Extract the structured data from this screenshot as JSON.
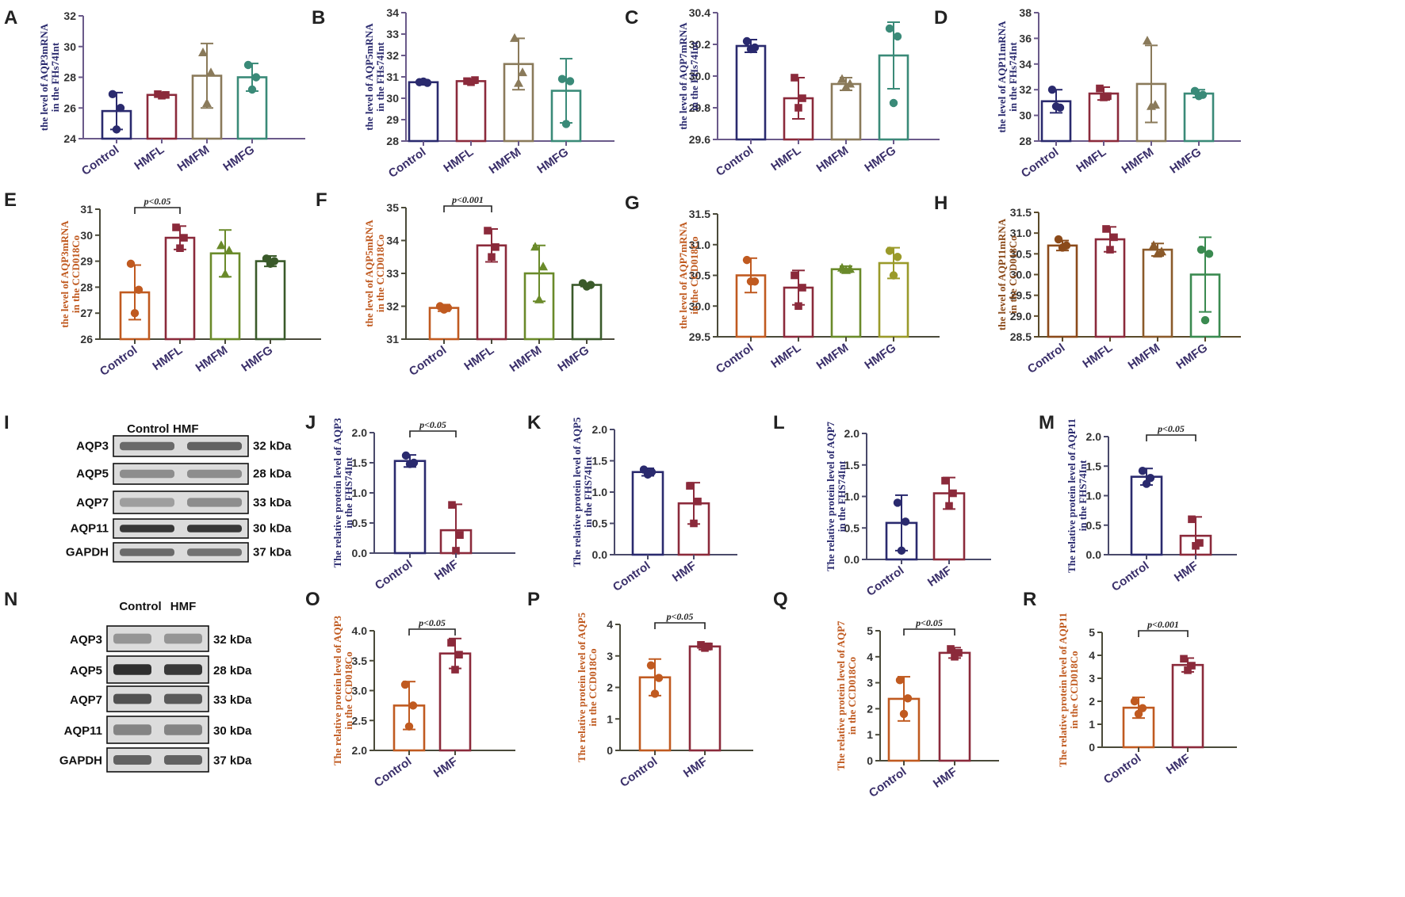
{
  "figure": {
    "title": ""
  },
  "chart_data": [
    {
      "panel": "A",
      "type": "bar",
      "ylabel": [
        "the level of AQP3mRNA",
        "in the FHs74Int"
      ],
      "ylim": [
        24,
        32
      ],
      "yticks": [
        24,
        26,
        28,
        30,
        32
      ],
      "categories": [
        "Control",
        "HMFL",
        "HMFM",
        "HMFG"
      ],
      "values": [
        25.8,
        26.85,
        28.1,
        28.0
      ],
      "err": [
        1.2,
        0.1,
        2.1,
        0.9
      ],
      "points": [
        [
          26.9,
          26.0,
          24.6
        ],
        [
          26.9,
          26.85,
          26.8
        ],
        [
          29.6,
          28.3,
          26.3
        ],
        [
          28.8,
          28.0,
          27.2
        ]
      ],
      "markers": [
        "circle",
        "square",
        "triangle",
        "circle"
      ],
      "colors": [
        "#2a2a6e",
        "#8b2a3b",
        "#8a7a5a",
        "#3a8a78"
      ],
      "axisColor": "#6a5a8a"
    },
    {
      "panel": "B",
      "type": "bar",
      "ylabel": [
        "the level of AQP5mRNA",
        "in the FHs74Int"
      ],
      "ylim": [
        28,
        34
      ],
      "yticks": [
        28,
        29,
        30,
        31,
        32,
        33,
        34
      ],
      "categories": [
        "Control",
        "HMFL",
        "HMFM",
        "HMFG"
      ],
      "values": [
        30.75,
        30.8,
        31.6,
        30.35
      ],
      "err": [
        0.05,
        0.1,
        1.2,
        1.5
      ],
      "points": [
        [
          30.75,
          30.72,
          30.78
        ],
        [
          30.8,
          30.85,
          30.75
        ],
        [
          32.8,
          31.2,
          30.7
        ],
        [
          30.9,
          30.8,
          28.8
        ]
      ],
      "markers": [
        "circle",
        "square",
        "triangle",
        "circle"
      ],
      "colors": [
        "#2a2a6e",
        "#8b2a3b",
        "#8a7a5a",
        "#3a8a78"
      ],
      "axisColor": "#6a5a8a"
    },
    {
      "panel": "C",
      "type": "bar",
      "ylabel": [
        "the level of AQP7mRNA",
        "in the FHs74Int"
      ],
      "ylim": [
        29.6,
        30.4
      ],
      "yticks": [
        "29.6",
        "29.8",
        "30.0",
        "30.2",
        "30.4"
      ],
      "categories": [
        "Control",
        "HMFL",
        "HMFM",
        "HMFG"
      ],
      "values": [
        30.19,
        29.86,
        29.95,
        30.13
      ],
      "err": [
        0.04,
        0.13,
        0.04,
        0.21
      ],
      "points": [
        [
          30.22,
          30.18,
          30.17
        ],
        [
          29.99,
          29.86,
          29.8
        ],
        [
          29.98,
          29.95,
          29.93
        ],
        [
          30.3,
          30.25,
          29.83
        ]
      ],
      "markers": [
        "circle",
        "square",
        "triangle",
        "circle"
      ],
      "colors": [
        "#2a2a6e",
        "#8b2a3b",
        "#8a7a5a",
        "#3a8a78"
      ],
      "axisColor": "#6a5a8a"
    },
    {
      "panel": "D",
      "type": "bar",
      "ylabel": [
        "the level of AQP11mRNA",
        "in the FHs74Int"
      ],
      "ylim": [
        28,
        38
      ],
      "yticks": [
        28,
        30,
        32,
        34,
        36,
        38
      ],
      "categories": [
        "Control",
        "HMFL",
        "HMFM",
        "HMFG"
      ],
      "values": [
        31.1,
        31.7,
        32.45,
        31.7
      ],
      "err": [
        0.9,
        0.5,
        3.0,
        0.3
      ],
      "points": [
        [
          32.0,
          30.6,
          30.7
        ],
        [
          32.1,
          31.5,
          31.4
        ],
        [
          35.8,
          30.8,
          30.7
        ],
        [
          31.9,
          31.6,
          31.5
        ]
      ],
      "markers": [
        "circle",
        "square",
        "triangle",
        "circle"
      ],
      "colors": [
        "#2a2a6e",
        "#8b2a3b",
        "#8a7a5a",
        "#3a8a78"
      ],
      "axisColor": "#6a5a8a"
    },
    {
      "panel": "E",
      "type": "bar",
      "ylabel": [
        "the level of AQP3mRNA",
        "in the CCD018Co"
      ],
      "ylim": [
        26,
        31
      ],
      "yticks": [
        26,
        27,
        28,
        29,
        30,
        31
      ],
      "categories": [
        "Control",
        "HMFL",
        "HMFM",
        "HMFG"
      ],
      "values": [
        27.8,
        29.9,
        29.3,
        29.0
      ],
      "err": [
        1.05,
        0.45,
        0.9,
        0.2
      ],
      "points": [
        [
          28.9,
          27.9,
          27.0
        ],
        [
          30.3,
          29.9,
          29.5
        ],
        [
          29.6,
          29.4,
          28.5
        ],
        [
          29.1,
          29.0,
          28.9
        ]
      ],
      "markers": [
        "circle",
        "square",
        "triangle",
        "circle"
      ],
      "colors": [
        "#c05a20",
        "#8b2a3b",
        "#6a8a2a",
        "#3a5a2a"
      ],
      "axisColor": "#4a4a3a",
      "sig": {
        "from": 0,
        "to": 1,
        "text": "p<0.05"
      }
    },
    {
      "panel": "F",
      "type": "bar",
      "ylabel": [
        "the level of AQP5mRNA",
        "in the CCD018Co"
      ],
      "ylim": [
        31,
        35
      ],
      "yticks": [
        31,
        32,
        33,
        34,
        35
      ],
      "categories": [
        "Control",
        "HMFL",
        "HMFM",
        "HMFG"
      ],
      "values": [
        31.95,
        33.85,
        33.0,
        32.65
      ],
      "err": [
        0.1,
        0.5,
        0.85,
        0.05
      ],
      "points": [
        [
          32.0,
          31.95,
          31.9
        ],
        [
          34.3,
          33.8,
          33.5
        ],
        [
          33.8,
          33.2,
          32.2
        ],
        [
          32.7,
          32.65,
          32.6
        ]
      ],
      "markers": [
        "circle",
        "square",
        "triangle",
        "circle"
      ],
      "colors": [
        "#c05a20",
        "#8b2a3b",
        "#6a8a2a",
        "#3a5a2a"
      ],
      "axisColor": "#4a4a3a",
      "sig": {
        "from": 0,
        "to": 1,
        "text": "p<0.001"
      }
    },
    {
      "panel": "G",
      "type": "bar",
      "ylabel": [
        "the level of AQP7mRNA",
        "in the CCD018Co"
      ],
      "ylim": [
        29.5,
        31.5
      ],
      "yticks": [
        "29.5",
        "30.0",
        "30.5",
        "31.0",
        "31.5"
      ],
      "categories": [
        "Control",
        "HMFL",
        "HMFM",
        "HMFG"
      ],
      "values": [
        30.5,
        30.3,
        30.6,
        30.7
      ],
      "err": [
        0.28,
        0.28,
        0.05,
        0.25
      ],
      "points": [
        [
          30.75,
          30.4,
          30.4
        ],
        [
          30.5,
          30.3,
          30.0
        ],
        [
          30.62,
          30.6,
          30.58
        ],
        [
          30.9,
          30.8,
          30.5
        ]
      ],
      "markers": [
        "circle",
        "square",
        "triangle",
        "circle"
      ],
      "colors": [
        "#c05a20",
        "#8b2a3b",
        "#6a8a2a",
        "#9a9a2a"
      ],
      "axisColor": "#4a4a3a"
    },
    {
      "panel": "H",
      "type": "bar",
      "ylabel": [
        "the level of AQP11mRNA",
        "in the CCD018Co"
      ],
      "ylim": [
        28.5,
        31.5
      ],
      "yticks": [
        "28.5",
        "29.0",
        "29.5",
        "30.0",
        "30.5",
        "31.0",
        "31.5"
      ],
      "categories": [
        "Control",
        "HMFL",
        "HMFM",
        "HMFG"
      ],
      "values": [
        30.7,
        30.85,
        30.6,
        30.0
      ],
      "err": [
        0.12,
        0.3,
        0.15,
        0.9
      ],
      "points": [
        [
          30.85,
          30.7,
          30.65
        ],
        [
          31.1,
          30.9,
          30.6
        ],
        [
          30.7,
          30.55,
          30.5
        ],
        [
          30.6,
          30.5,
          28.9
        ]
      ],
      "markers": [
        "circle",
        "square",
        "triangle",
        "circle"
      ],
      "colors": [
        "#8b4a1a",
        "#8b2a3b",
        "#8b5a2a",
        "#3a8a50"
      ],
      "axisColor": "#5a4a2a"
    },
    {
      "panel": "J",
      "type": "bar",
      "ylabel": [
        "The relative protein level of AQP3",
        "in the FHS74Int"
      ],
      "ylim": [
        0,
        2
      ],
      "yticks": [
        "0.0",
        "0.5",
        "1.0",
        "1.5",
        "2.0"
      ],
      "categories": [
        "Control",
        "HMF"
      ],
      "values": [
        1.53,
        0.38
      ],
      "err": [
        0.1,
        0.43
      ],
      "points": [
        [
          1.62,
          1.5,
          1.48
        ],
        [
          0.8,
          0.3,
          0.04
        ]
      ],
      "markers": [
        "circle",
        "square"
      ],
      "colors": [
        "#2a2a6e",
        "#8b2a3b"
      ],
      "axisColor": "#4a4a6a",
      "sig": {
        "from": 0,
        "to": 1,
        "text": "p<0.05"
      }
    },
    {
      "panel": "K",
      "type": "bar",
      "ylabel": [
        "The relative protein level of AQP5",
        "in the FHS74Int"
      ],
      "ylim": [
        0,
        2
      ],
      "yticks": [
        "0.0",
        "0.5",
        "1.0",
        "1.5",
        "2.0"
      ],
      "categories": [
        "Control",
        "HMF"
      ],
      "values": [
        1.32,
        0.82
      ],
      "err": [
        0.06,
        0.33
      ],
      "points": [
        [
          1.36,
          1.32,
          1.28
        ],
        [
          1.1,
          0.85,
          0.5
        ]
      ],
      "markers": [
        "circle",
        "square"
      ],
      "colors": [
        "#2a2a6e",
        "#8b2a3b"
      ],
      "axisColor": "#4a4a6a"
    },
    {
      "panel": "L",
      "type": "bar",
      "ylabel": [
        "The relative protein level of AQP7",
        "in the FHS74Int"
      ],
      "ylim": [
        0,
        2
      ],
      "yticks": [
        "0.0",
        "0.5",
        "1.0",
        "1.5",
        "2.0"
      ],
      "categories": [
        "Control",
        "HMF"
      ],
      "values": [
        0.58,
        1.05
      ],
      "err": [
        0.44,
        0.25
      ],
      "points": [
        [
          0.9,
          0.6,
          0.14
        ],
        [
          1.25,
          1.05,
          0.85
        ]
      ],
      "markers": [
        "circle",
        "square"
      ],
      "colors": [
        "#2a2a6e",
        "#8b2a3b"
      ],
      "axisColor": "#4a4a6a"
    },
    {
      "panel": "M",
      "type": "bar",
      "ylabel": [
        "The relative protein level of AQP11",
        "in the FHS74Int"
      ],
      "ylim": [
        0,
        2
      ],
      "yticks": [
        "0.0",
        "0.5",
        "1.0",
        "1.5",
        "2.0"
      ],
      "categories": [
        "Control",
        "HMF"
      ],
      "values": [
        1.32,
        0.32
      ],
      "err": [
        0.14,
        0.32
      ],
      "points": [
        [
          1.42,
          1.3,
          1.2
        ],
        [
          0.6,
          0.2,
          0.15
        ]
      ],
      "markers": [
        "circle",
        "square"
      ],
      "colors": [
        "#2a2a6e",
        "#8b2a3b"
      ],
      "axisColor": "#4a4a6a",
      "sig": {
        "from": 0,
        "to": 1,
        "text": "p<0.05"
      }
    },
    {
      "panel": "O",
      "type": "bar",
      "ylabel": [
        "The relative protein level of AQP3",
        "in the CCD018Co"
      ],
      "ylim": [
        2,
        4
      ],
      "yticks": [
        "2.0",
        "2.5",
        "3.0",
        "3.5",
        "4.0"
      ],
      "categories": [
        "Control",
        "HMF"
      ],
      "values": [
        2.75,
        3.62
      ],
      "err": [
        0.4,
        0.25
      ],
      "points": [
        [
          3.1,
          2.75,
          2.4
        ],
        [
          3.8,
          3.6,
          3.35
        ]
      ],
      "markers": [
        "circle",
        "square"
      ],
      "colors": [
        "#c05a20",
        "#8b2a3b"
      ],
      "axisColor": "#4a4a3a",
      "sig": {
        "from": 0,
        "to": 1,
        "text": "p<0.05"
      }
    },
    {
      "panel": "P",
      "type": "bar",
      "ylabel": [
        "The relative protein level of AQP5",
        "in the CCD018Co"
      ],
      "ylim": [
        0,
        4
      ],
      "yticks": [
        0,
        1,
        2,
        3,
        4
      ],
      "categories": [
        "Control",
        "HMF"
      ],
      "values": [
        2.32,
        3.3
      ],
      "err": [
        0.58,
        0.1
      ],
      "points": [
        [
          2.7,
          2.3,
          1.8
        ],
        [
          3.35,
          3.3,
          3.25
        ]
      ],
      "markers": [
        "circle",
        "square"
      ],
      "colors": [
        "#c05a20",
        "#8b2a3b"
      ],
      "axisColor": "#4a4a3a",
      "sig": {
        "from": 0,
        "to": 1,
        "text": "p<0.05"
      }
    },
    {
      "panel": "Q",
      "type": "bar",
      "ylabel": [
        "The relative protein level of AQP7",
        "in the CCD018Co"
      ],
      "ylim": [
        0,
        5
      ],
      "yticks": [
        0,
        1,
        2,
        3,
        4,
        5
      ],
      "categories": [
        "Control",
        "HMF"
      ],
      "values": [
        2.38,
        4.15
      ],
      "err": [
        0.85,
        0.2
      ],
      "points": [
        [
          3.1,
          2.4,
          1.8
        ],
        [
          4.3,
          4.15,
          4.0
        ]
      ],
      "markers": [
        "circle",
        "square"
      ],
      "colors": [
        "#c05a20",
        "#8b2a3b"
      ],
      "axisColor": "#4a4a3a",
      "sig": {
        "from": 0,
        "to": 1,
        "text": "p<0.05"
      }
    },
    {
      "panel": "R",
      "type": "bar",
      "ylabel": [
        "The relative protein level of AQP11",
        "in the CCD018Co"
      ],
      "ylim": [
        0,
        5
      ],
      "yticks": [
        0,
        1,
        2,
        3,
        4,
        5
      ],
      "categories": [
        "Control",
        "HMF"
      ],
      "values": [
        1.72,
        3.58
      ],
      "err": [
        0.45,
        0.3
      ],
      "points": [
        [
          2.0,
          1.7,
          1.45
        ],
        [
          3.85,
          3.55,
          3.35
        ]
      ],
      "markers": [
        "circle",
        "square"
      ],
      "colors": [
        "#c05a20",
        "#8b2a3b"
      ],
      "axisColor": "#4a4a3a",
      "sig": {
        "from": 0,
        "to": 1,
        "text": "p<0.001"
      }
    }
  ],
  "blots": [
    {
      "panel": "I",
      "header": [
        "Control",
        "HMF"
      ],
      "rows": [
        {
          "protein": "AQP3",
          "size": "32 kDa",
          "shade": [
            0.55,
            0.6
          ]
        },
        {
          "protein": "AQP5",
          "size": "28 kDa",
          "shade": [
            0.35,
            0.35
          ]
        },
        {
          "protein": "AQP7",
          "size": "33 kDa",
          "shade": [
            0.25,
            0.35
          ]
        },
        {
          "protein": "AQP11",
          "size": "30 kDa",
          "shade": [
            0.85,
            0.85
          ]
        },
        {
          "protein": "GAPDH",
          "size": "37 kDa",
          "shade": [
            0.55,
            0.5
          ]
        }
      ]
    },
    {
      "panel": "N",
      "header": [
        "Control",
        "HMF"
      ],
      "rows": [
        {
          "protein": "AQP3",
          "size": "32 kDa",
          "shade": [
            0.3,
            0.3
          ]
        },
        {
          "protein": "AQP5",
          "size": "28 kDa",
          "shade": [
            0.9,
            0.85
          ]
        },
        {
          "protein": "AQP7",
          "size": "33 kDa",
          "shade": [
            0.7,
            0.65
          ]
        },
        {
          "protein": "AQP11",
          "size": "30 kDa",
          "shade": [
            0.4,
            0.4
          ]
        },
        {
          "protein": "GAPDH",
          "size": "37 kDa",
          "shade": [
            0.6,
            0.6
          ]
        }
      ]
    }
  ]
}
